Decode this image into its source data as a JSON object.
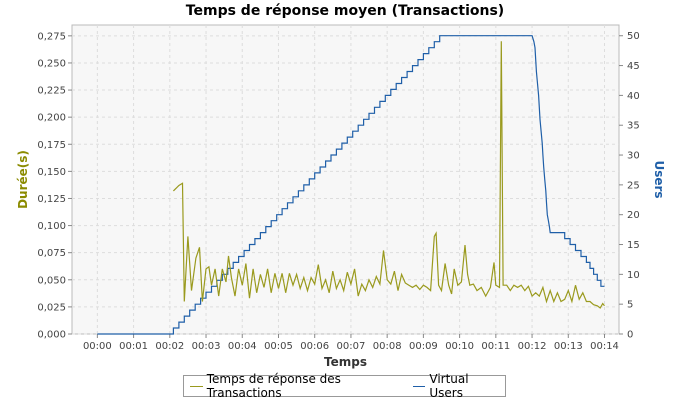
{
  "chart_data": {
    "type": "line",
    "title": "Temps de réponse moyen (Transactions)",
    "xlabel": "Temps",
    "ylabel_left": "Durée(s)",
    "ylabel_right": "Users",
    "x_ticks": [
      "00:00",
      "00:01",
      "00:02",
      "00:03",
      "00:04",
      "00:05",
      "00:06",
      "00:07",
      "00:08",
      "00:09",
      "00:10",
      "00:11",
      "00:12",
      "00:13",
      "00:14"
    ],
    "y_left_ticks": [
      "0,000",
      "0,025",
      "0,050",
      "0,075",
      "0,100",
      "0,125",
      "0,150",
      "0,175",
      "0,200",
      "0,225",
      "0,250",
      "0,275"
    ],
    "y_right_ticks": [
      "0",
      "5",
      "10",
      "15",
      "20",
      "25",
      "30",
      "35",
      "40",
      "45",
      "50"
    ],
    "y_left_lim": [
      0,
      0.285
    ],
    "y_right_lim": [
      0,
      51.8
    ],
    "x_lim_minutes": [
      -0.7,
      14.4
    ],
    "grid": true,
    "legend_position": "bottom",
    "colors": {
      "response": "#9A9A1E",
      "users": "#1F5FA8",
      "ylabel_left": "#8B8B00",
      "ylabel_right": "#1F5FA8"
    },
    "series": [
      {
        "name": "Temps de réponse des Transactions",
        "axis": "left",
        "points": [
          [
            2.1,
            0.132
          ],
          [
            2.25,
            0.137
          ],
          [
            2.35,
            0.139
          ],
          [
            2.4,
            0.03
          ],
          [
            2.5,
            0.09
          ],
          [
            2.6,
            0.04
          ],
          [
            2.72,
            0.07
          ],
          [
            2.82,
            0.08
          ],
          [
            2.9,
            0.03
          ],
          [
            3.0,
            0.06
          ],
          [
            3.08,
            0.062
          ],
          [
            3.15,
            0.045
          ],
          [
            3.25,
            0.06
          ],
          [
            3.35,
            0.035
          ],
          [
            3.45,
            0.06
          ],
          [
            3.55,
            0.048
          ],
          [
            3.62,
            0.072
          ],
          [
            3.7,
            0.052
          ],
          [
            3.8,
            0.035
          ],
          [
            3.9,
            0.06
          ],
          [
            4.0,
            0.045
          ],
          [
            4.1,
            0.065
          ],
          [
            4.2,
            0.033
          ],
          [
            4.3,
            0.06
          ],
          [
            4.4,
            0.038
          ],
          [
            4.5,
            0.055
          ],
          [
            4.6,
            0.043
          ],
          [
            4.7,
            0.06
          ],
          [
            4.8,
            0.038
          ],
          [
            4.9,
            0.056
          ],
          [
            5.0,
            0.042
          ],
          [
            5.1,
            0.056
          ],
          [
            5.2,
            0.038
          ],
          [
            5.3,
            0.056
          ],
          [
            5.4,
            0.045
          ],
          [
            5.5,
            0.055
          ],
          [
            5.6,
            0.042
          ],
          [
            5.7,
            0.052
          ],
          [
            5.8,
            0.04
          ],
          [
            5.9,
            0.052
          ],
          [
            6.0,
            0.046
          ],
          [
            6.1,
            0.064
          ],
          [
            6.2,
            0.042
          ],
          [
            6.3,
            0.05
          ],
          [
            6.4,
            0.038
          ],
          [
            6.5,
            0.058
          ],
          [
            6.6,
            0.042
          ],
          [
            6.7,
            0.05
          ],
          [
            6.8,
            0.04
          ],
          [
            6.9,
            0.057
          ],
          [
            7.0,
            0.046
          ],
          [
            7.1,
            0.06
          ],
          [
            7.2,
            0.035
          ],
          [
            7.3,
            0.046
          ],
          [
            7.4,
            0.04
          ],
          [
            7.5,
            0.05
          ],
          [
            7.6,
            0.043
          ],
          [
            7.7,
            0.053
          ],
          [
            7.8,
            0.046
          ],
          [
            7.9,
            0.077
          ],
          [
            8.0,
            0.05
          ],
          [
            8.1,
            0.046
          ],
          [
            8.2,
            0.058
          ],
          [
            8.3,
            0.04
          ],
          [
            8.4,
            0.055
          ],
          [
            8.5,
            0.047
          ],
          [
            8.6,
            0.045
          ],
          [
            8.7,
            0.043
          ],
          [
            8.8,
            0.045
          ],
          [
            8.9,
            0.041
          ],
          [
            9.0,
            0.045
          ],
          [
            9.1,
            0.043
          ],
          [
            9.2,
            0.04
          ],
          [
            9.3,
            0.09
          ],
          [
            9.35,
            0.093
          ],
          [
            9.42,
            0.045
          ],
          [
            9.5,
            0.04
          ],
          [
            9.6,
            0.065
          ],
          [
            9.7,
            0.045
          ],
          [
            9.78,
            0.037
          ],
          [
            9.85,
            0.06
          ],
          [
            9.95,
            0.045
          ],
          [
            10.05,
            0.048
          ],
          [
            10.15,
            0.082
          ],
          [
            10.22,
            0.055
          ],
          [
            10.28,
            0.045
          ],
          [
            10.38,
            0.046
          ],
          [
            10.48,
            0.04
          ],
          [
            10.6,
            0.043
          ],
          [
            10.72,
            0.035
          ],
          [
            10.85,
            0.043
          ],
          [
            10.95,
            0.066
          ],
          [
            11.0,
            0.045
          ],
          [
            11.1,
            0.043
          ],
          [
            11.15,
            0.27
          ],
          [
            11.2,
            0.045
          ],
          [
            11.3,
            0.045
          ],
          [
            11.4,
            0.04
          ],
          [
            11.5,
            0.045
          ],
          [
            11.6,
            0.043
          ],
          [
            11.7,
            0.045
          ],
          [
            11.8,
            0.04
          ],
          [
            11.9,
            0.044
          ],
          [
            12.0,
            0.035
          ],
          [
            12.1,
            0.038
          ],
          [
            12.2,
            0.035
          ],
          [
            12.3,
            0.043
          ],
          [
            12.4,
            0.03
          ],
          [
            12.5,
            0.04
          ],
          [
            12.6,
            0.03
          ],
          [
            12.7,
            0.038
          ],
          [
            12.8,
            0.03
          ],
          [
            12.9,
            0.032
          ],
          [
            13.0,
            0.04
          ],
          [
            13.1,
            0.03
          ],
          [
            13.2,
            0.045
          ],
          [
            13.3,
            0.032
          ],
          [
            13.4,
            0.038
          ],
          [
            13.5,
            0.03
          ],
          [
            13.6,
            0.03
          ],
          [
            13.7,
            0.027
          ],
          [
            13.8,
            0.026
          ],
          [
            13.88,
            0.024
          ],
          [
            13.95,
            0.028
          ],
          [
            14.0,
            0.026
          ]
        ]
      },
      {
        "name": "Virtual Users",
        "axis": "right",
        "points": [
          [
            0,
            0
          ],
          [
            2.1,
            0
          ],
          [
            2.1,
            1
          ],
          [
            2.25,
            1
          ],
          [
            2.25,
            2
          ],
          [
            2.4,
            2
          ],
          [
            2.4,
            3
          ],
          [
            2.55,
            3
          ],
          [
            2.55,
            4
          ],
          [
            2.7,
            4
          ],
          [
            2.7,
            5
          ],
          [
            2.85,
            5
          ],
          [
            2.85,
            6
          ],
          [
            3.0,
            6
          ],
          [
            3.0,
            7
          ],
          [
            3.15,
            7
          ],
          [
            3.15,
            8
          ],
          [
            3.3,
            8
          ],
          [
            3.3,
            9
          ],
          [
            3.45,
            9
          ],
          [
            3.45,
            10
          ],
          [
            3.6,
            10
          ],
          [
            3.6,
            11
          ],
          [
            3.75,
            11
          ],
          [
            3.75,
            12
          ],
          [
            3.9,
            12
          ],
          [
            3.9,
            13
          ],
          [
            4.05,
            13
          ],
          [
            4.05,
            14
          ],
          [
            4.2,
            14
          ],
          [
            4.2,
            15
          ],
          [
            4.35,
            15
          ],
          [
            4.35,
            16
          ],
          [
            4.5,
            16
          ],
          [
            4.5,
            17
          ],
          [
            4.65,
            17
          ],
          [
            4.65,
            18
          ],
          [
            4.8,
            18
          ],
          [
            4.8,
            19
          ],
          [
            4.95,
            19
          ],
          [
            4.95,
            20
          ],
          [
            5.1,
            20
          ],
          [
            5.1,
            21
          ],
          [
            5.25,
            21
          ],
          [
            5.25,
            22
          ],
          [
            5.4,
            22
          ],
          [
            5.4,
            23
          ],
          [
            5.55,
            23
          ],
          [
            5.55,
            24
          ],
          [
            5.7,
            24
          ],
          [
            5.7,
            25
          ],
          [
            5.85,
            25
          ],
          [
            5.85,
            26
          ],
          [
            6.0,
            26
          ],
          [
            6.0,
            27
          ],
          [
            6.15,
            27
          ],
          [
            6.15,
            28
          ],
          [
            6.3,
            28
          ],
          [
            6.3,
            29
          ],
          [
            6.45,
            29
          ],
          [
            6.45,
            30
          ],
          [
            6.6,
            30
          ],
          [
            6.6,
            31
          ],
          [
            6.75,
            31
          ],
          [
            6.75,
            32
          ],
          [
            6.9,
            32
          ],
          [
            6.9,
            33
          ],
          [
            7.05,
            33
          ],
          [
            7.05,
            34
          ],
          [
            7.2,
            34
          ],
          [
            7.2,
            35
          ],
          [
            7.35,
            35
          ],
          [
            7.35,
            36
          ],
          [
            7.5,
            36
          ],
          [
            7.5,
            37
          ],
          [
            7.65,
            37
          ],
          [
            7.65,
            38
          ],
          [
            7.8,
            38
          ],
          [
            7.8,
            39
          ],
          [
            7.95,
            39
          ],
          [
            7.95,
            40
          ],
          [
            8.1,
            40
          ],
          [
            8.1,
            41
          ],
          [
            8.25,
            41
          ],
          [
            8.25,
            42
          ],
          [
            8.4,
            42
          ],
          [
            8.4,
            43
          ],
          [
            8.55,
            43
          ],
          [
            8.55,
            44
          ],
          [
            8.7,
            44
          ],
          [
            8.7,
            45
          ],
          [
            8.85,
            45
          ],
          [
            8.85,
            46
          ],
          [
            9.0,
            46
          ],
          [
            9.0,
            47
          ],
          [
            9.15,
            47
          ],
          [
            9.15,
            48
          ],
          [
            9.3,
            48
          ],
          [
            9.3,
            49
          ],
          [
            9.45,
            49
          ],
          [
            9.45,
            50
          ],
          [
            12.0,
            50
          ],
          [
            12.05,
            49
          ],
          [
            12.08,
            48
          ],
          [
            12.1,
            46
          ],
          [
            12.12,
            44
          ],
          [
            12.15,
            42
          ],
          [
            12.18,
            40
          ],
          [
            12.2,
            38
          ],
          [
            12.22,
            36
          ],
          [
            12.25,
            34
          ],
          [
            12.28,
            32
          ],
          [
            12.3,
            30
          ],
          [
            12.32,
            28
          ],
          [
            12.35,
            26
          ],
          [
            12.38,
            24
          ],
          [
            12.4,
            22
          ],
          [
            12.42,
            20
          ],
          [
            12.45,
            19
          ],
          [
            12.48,
            18
          ],
          [
            12.5,
            17
          ],
          [
            12.9,
            17
          ],
          [
            12.9,
            16
          ],
          [
            13.05,
            16
          ],
          [
            13.05,
            15
          ],
          [
            13.2,
            15
          ],
          [
            13.2,
            14
          ],
          [
            13.35,
            14
          ],
          [
            13.35,
            13
          ],
          [
            13.5,
            13
          ],
          [
            13.5,
            12
          ],
          [
            13.6,
            12
          ],
          [
            13.6,
            11
          ],
          [
            13.7,
            11
          ],
          [
            13.7,
            10
          ],
          [
            13.8,
            10
          ],
          [
            13.8,
            9
          ],
          [
            13.9,
            9
          ],
          [
            13.9,
            8
          ],
          [
            14.0,
            8
          ]
        ]
      }
    ]
  }
}
